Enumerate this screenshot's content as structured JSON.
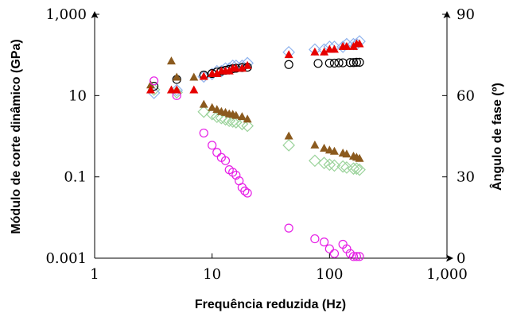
{
  "chart_data": {
    "type": "scatter",
    "xlabel": "Frequência reduzida (Hz)",
    "ylabel": "Módulo de corte dinâmico (GPa)",
    "y2label": "Ângulo de fase (º)",
    "x_scale": "log",
    "y_scale": "log",
    "xlim": [
      1,
      1000
    ],
    "ylim": [
      0.001,
      1000
    ],
    "y2lim": [
      0,
      90
    ],
    "x_ticks": [
      "1",
      "10",
      "100",
      "1,000"
    ],
    "y_ticks": [
      "0.001",
      "0.1",
      "10",
      "1,000"
    ],
    "y2_ticks": [
      "0",
      "30",
      "60",
      "90"
    ],
    "grid": false,
    "series": [
      {
        "marker": "circle",
        "color": "#000000",
        "axis": "left",
        "points": [
          [
            3.2,
            17
          ],
          [
            5,
            25
          ],
          [
            8.5,
            32
          ],
          [
            10,
            35
          ],
          [
            11,
            38
          ],
          [
            12,
            40
          ],
          [
            13,
            42
          ],
          [
            14,
            44
          ],
          [
            15,
            46
          ],
          [
            16,
            47
          ],
          [
            18,
            49
          ],
          [
            20,
            50
          ],
          [
            45,
            58
          ],
          [
            80,
            62
          ],
          [
            100,
            63
          ],
          [
            110,
            63
          ],
          [
            120,
            64
          ],
          [
            130,
            64
          ],
          [
            150,
            65
          ],
          [
            160,
            65
          ],
          [
            170,
            66
          ],
          [
            180,
            66
          ]
        ]
      },
      {
        "marker": "triangle",
        "color": "#8b5a1e",
        "axis": "left",
        "points": [
          [
            3,
            18
          ],
          [
            4.5,
            70
          ],
          [
            5,
            28
          ],
          [
            7,
            28
          ],
          [
            8.5,
            6
          ],
          [
            10,
            5
          ],
          [
            11,
            4.5
          ],
          [
            12,
            4
          ],
          [
            13,
            3.8
          ],
          [
            14,
            3.5
          ],
          [
            15,
            3.4
          ],
          [
            16,
            3.2
          ],
          [
            18,
            3
          ],
          [
            20,
            2.6
          ],
          [
            45,
            1
          ],
          [
            75,
            0.6
          ],
          [
            90,
            0.5
          ],
          [
            100,
            0.45
          ],
          [
            110,
            0.42
          ],
          [
            130,
            0.38
          ],
          [
            140,
            0.36
          ],
          [
            160,
            0.32
          ],
          [
            170,
            0.3
          ],
          [
            180,
            0.28
          ]
        ]
      },
      {
        "marker": "diamond",
        "color": "#9bd39b",
        "axis": "left",
        "points": [
          [
            3.2,
            14
          ],
          [
            5,
            12
          ],
          [
            8.5,
            4
          ],
          [
            10,
            3.5
          ],
          [
            11,
            3
          ],
          [
            12,
            2.8
          ],
          [
            13,
            2.6
          ],
          [
            14,
            2.4
          ],
          [
            15,
            2.3
          ],
          [
            16,
            2.2
          ],
          [
            18,
            2
          ],
          [
            20,
            1.8
          ],
          [
            45,
            0.6
          ],
          [
            75,
            0.25
          ],
          [
            90,
            0.22
          ],
          [
            100,
            0.2
          ],
          [
            110,
            0.19
          ],
          [
            130,
            0.18
          ],
          [
            140,
            0.17
          ],
          [
            160,
            0.16
          ],
          [
            170,
            0.16
          ],
          [
            180,
            0.15
          ]
        ]
      },
      {
        "marker": "circle",
        "color": "#e61ee6",
        "axis": "left",
        "points": [
          [
            3.2,
            23
          ],
          [
            5,
            10
          ],
          [
            8.5,
            1.2
          ],
          [
            10,
            0.6
          ],
          [
            11,
            0.4
          ],
          [
            12,
            0.3
          ],
          [
            13,
            0.25
          ],
          [
            14,
            0.15
          ],
          [
            15,
            0.13
          ],
          [
            16,
            0.11
          ],
          [
            17,
            0.08
          ],
          [
            18,
            0.055
          ],
          [
            19,
            0.045
          ],
          [
            20,
            0.04
          ],
          [
            45,
            0.0055
          ],
          [
            75,
            0.003
          ],
          [
            90,
            0.0025
          ],
          [
            100,
            0.0017
          ],
          [
            110,
            0.0013
          ],
          [
            130,
            0.0022
          ],
          [
            140,
            0.0017
          ],
          [
            150,
            0.0013
          ],
          [
            160,
            0.0011
          ],
          [
            170,
            0.0011
          ],
          [
            180,
            0.0011
          ]
        ]
      },
      {
        "marker": "triangle",
        "color": "#e60000",
        "axis": "right",
        "points": [
          [
            3,
            62
          ],
          [
            4.5,
            62
          ],
          [
            5,
            62
          ],
          [
            7,
            62
          ],
          [
            8.5,
            67
          ],
          [
            10,
            68
          ],
          [
            11,
            68
          ],
          [
            12,
            69
          ],
          [
            13,
            69
          ],
          [
            14,
            69
          ],
          [
            15,
            70
          ],
          [
            16,
            70
          ],
          [
            18,
            70
          ],
          [
            20,
            71
          ],
          [
            45,
            75
          ],
          [
            75,
            76
          ],
          [
            90,
            76
          ],
          [
            100,
            77
          ],
          [
            110,
            77
          ],
          [
            130,
            78
          ],
          [
            140,
            78
          ],
          [
            160,
            78
          ],
          [
            170,
            79
          ],
          [
            180,
            79
          ]
        ]
      },
      {
        "marker": "diamond",
        "color": "#8fb3ee",
        "axis": "right",
        "points": [
          [
            3.2,
            61
          ],
          [
            5,
            62
          ],
          [
            8.5,
            67
          ],
          [
            10,
            68
          ],
          [
            11,
            69
          ],
          [
            12,
            69
          ],
          [
            13,
            70
          ],
          [
            14,
            70
          ],
          [
            15,
            71
          ],
          [
            16,
            71
          ],
          [
            18,
            71
          ],
          [
            20,
            72
          ],
          [
            45,
            76
          ],
          [
            75,
            77
          ],
          [
            90,
            77
          ],
          [
            100,
            78
          ],
          [
            110,
            78
          ],
          [
            130,
            78
          ],
          [
            140,
            79
          ],
          [
            160,
            79
          ],
          [
            170,
            79
          ],
          [
            180,
            80
          ]
        ]
      }
    ]
  }
}
